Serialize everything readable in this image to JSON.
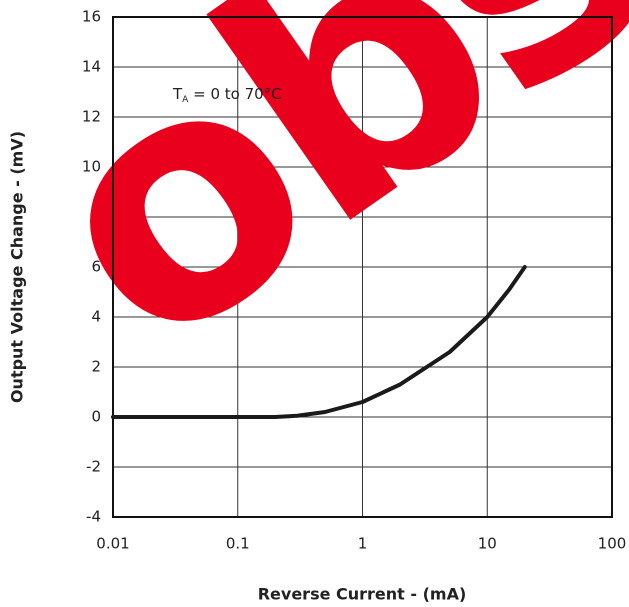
{
  "chart_data": {
    "type": "line",
    "x_label": "Reverse Current - (mA)",
    "y_label": "Output Voltage Change - (mV)",
    "annotation": {
      "text": "T",
      "subscript": "A",
      "rest": " = 0 to 70°C"
    },
    "watermark": "obs",
    "x": [
      0.01,
      0.1,
      0.2,
      0.3,
      0.5,
      1,
      2,
      5,
      10,
      15,
      20
    ],
    "series": [
      {
        "name": "Output Voltage Change",
        "color": "#1a1a1a",
        "values": [
          0,
          0,
          0,
          0.05,
          0.2,
          0.6,
          1.3,
          2.6,
          4,
          5.1,
          6
        ]
      }
    ],
    "xscale": "log",
    "xlim": [
      0.01,
      100
    ],
    "xticks": [
      0.01,
      0.1,
      1,
      10,
      100
    ],
    "ylim": [
      -4,
      16
    ],
    "yticks": [
      -4,
      -2,
      0,
      2,
      4,
      6,
      8,
      10,
      12,
      14,
      16
    ],
    "grid": true
  }
}
